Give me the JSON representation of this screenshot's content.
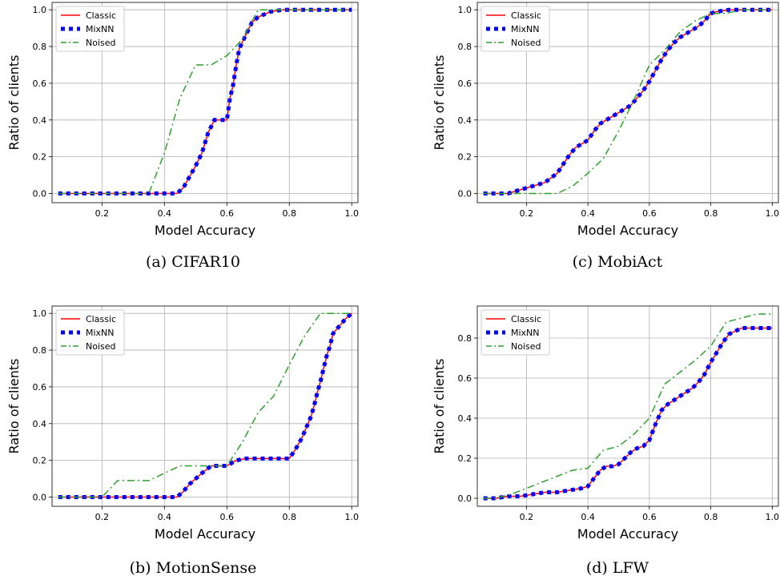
{
  "chart_data": [
    {
      "type": "line",
      "caption": "(a) CIFAR10",
      "xlabel": "Model Accuracy",
      "ylabel": "Ratio of clients",
      "xlim": [
        0.04,
        1.02
      ],
      "ylim": [
        -0.05,
        1.04
      ],
      "xticks": [
        "0.2",
        "0.4",
        "0.6",
        "0.8",
        "1.0"
      ],
      "yticks": [
        "0.0",
        "0.2",
        "0.4",
        "0.6",
        "0.8",
        "1.0"
      ],
      "legend": "top-left",
      "grid": true,
      "series": [
        {
          "name": "Classic",
          "color": "#ff0000",
          "style": "solid",
          "x": [
            0.06,
            0.1,
            0.14,
            0.18,
            0.22,
            0.26,
            0.3,
            0.34,
            0.38,
            0.42,
            0.44,
            0.46,
            0.48,
            0.5,
            0.52,
            0.54,
            0.56,
            0.58,
            0.6,
            0.61,
            0.62,
            0.63,
            0.64,
            0.66,
            0.68,
            0.7,
            0.74,
            0.78,
            0.82,
            0.86,
            0.9,
            0.94,
            0.98,
            1.0
          ],
          "y": [
            0,
            0,
            0,
            0,
            0,
            0,
            0,
            0,
            0,
            0,
            0,
            0.03,
            0.09,
            0.15,
            0.22,
            0.33,
            0.4,
            0.4,
            0.4,
            0.52,
            0.59,
            0.7,
            0.79,
            0.86,
            0.93,
            0.96,
            0.99,
            1.0,
            1.0,
            1.0,
            1.0,
            1.0,
            1.0,
            1.0
          ]
        },
        {
          "name": "MixNN",
          "color": "#0000ff",
          "style": "dotted",
          "x": [
            0.06,
            0.1,
            0.14,
            0.18,
            0.22,
            0.26,
            0.3,
            0.34,
            0.38,
            0.42,
            0.44,
            0.46,
            0.48,
            0.5,
            0.52,
            0.54,
            0.56,
            0.58,
            0.6,
            0.61,
            0.62,
            0.63,
            0.64,
            0.66,
            0.68,
            0.7,
            0.74,
            0.78,
            0.82,
            0.86,
            0.9,
            0.94,
            0.98,
            1.0
          ],
          "y": [
            0,
            0,
            0,
            0,
            0,
            0,
            0,
            0,
            0,
            0,
            0,
            0.03,
            0.09,
            0.15,
            0.22,
            0.33,
            0.4,
            0.4,
            0.4,
            0.52,
            0.59,
            0.7,
            0.79,
            0.86,
            0.93,
            0.96,
            0.99,
            1.0,
            1.0,
            1.0,
            1.0,
            1.0,
            1.0,
            1.0
          ]
        },
        {
          "name": "Noised",
          "color": "#2ca02c",
          "style": "dashdot",
          "x": [
            0.06,
            0.35,
            0.4,
            0.45,
            0.5,
            0.55,
            0.6,
            0.65,
            0.7,
            0.75,
            0.8,
            1.0
          ],
          "y": [
            0,
            0,
            0.22,
            0.52,
            0.7,
            0.7,
            0.75,
            0.84,
            1.0,
            1.0,
            1.0,
            1.0
          ]
        }
      ]
    },
    {
      "type": "line",
      "caption": "(c) MobiAct",
      "xlabel": "Model Accuracy",
      "ylabel": "Ratio of clients",
      "xlim": [
        0.04,
        1.02
      ],
      "ylim": [
        -0.05,
        1.04
      ],
      "xticks": [
        "0.2",
        "0.4",
        "0.6",
        "0.8",
        "1.0"
      ],
      "yticks": [
        "0.0",
        "0.2",
        "0.4",
        "0.6",
        "0.8",
        "1.0"
      ],
      "legend": "top-left",
      "grid": true,
      "series": [
        {
          "name": "Classic",
          "color": "#ff0000",
          "style": "solid",
          "x": [
            0.06,
            0.1,
            0.14,
            0.18,
            0.22,
            0.26,
            0.3,
            0.32,
            0.34,
            0.36,
            0.38,
            0.4,
            0.42,
            0.44,
            0.46,
            0.48,
            0.5,
            0.52,
            0.54,
            0.56,
            0.58,
            0.6,
            0.62,
            0.64,
            0.66,
            0.68,
            0.7,
            0.72,
            0.74,
            0.76,
            0.78,
            0.8,
            0.82,
            0.86,
            0.9,
            0.94,
            0.98,
            1.0
          ],
          "y": [
            0,
            0,
            0,
            0.02,
            0.04,
            0.06,
            0.11,
            0.16,
            0.21,
            0.25,
            0.27,
            0.29,
            0.34,
            0.38,
            0.4,
            0.42,
            0.44,
            0.46,
            0.48,
            0.52,
            0.56,
            0.61,
            0.67,
            0.73,
            0.78,
            0.82,
            0.85,
            0.87,
            0.89,
            0.91,
            0.94,
            0.98,
            0.99,
            1.0,
            1.0,
            1.0,
            1.0,
            1.0
          ]
        },
        {
          "name": "MixNN",
          "color": "#0000ff",
          "style": "dotted",
          "x": [
            0.06,
            0.1,
            0.14,
            0.18,
            0.22,
            0.26,
            0.3,
            0.32,
            0.34,
            0.36,
            0.38,
            0.4,
            0.42,
            0.44,
            0.46,
            0.48,
            0.5,
            0.52,
            0.54,
            0.56,
            0.58,
            0.6,
            0.62,
            0.64,
            0.66,
            0.68,
            0.7,
            0.72,
            0.74,
            0.76,
            0.78,
            0.8,
            0.82,
            0.86,
            0.9,
            0.94,
            0.98,
            1.0
          ],
          "y": [
            0,
            0,
            0,
            0.02,
            0.04,
            0.06,
            0.11,
            0.16,
            0.21,
            0.25,
            0.27,
            0.29,
            0.34,
            0.38,
            0.4,
            0.42,
            0.44,
            0.46,
            0.48,
            0.52,
            0.56,
            0.61,
            0.67,
            0.73,
            0.78,
            0.82,
            0.85,
            0.87,
            0.89,
            0.91,
            0.94,
            0.98,
            0.99,
            1.0,
            1.0,
            1.0,
            1.0,
            1.0
          ]
        },
        {
          "name": "Noised",
          "color": "#2ca02c",
          "style": "dashdot",
          "x": [
            0.06,
            0.3,
            0.35,
            0.4,
            0.45,
            0.5,
            0.55,
            0.6,
            0.65,
            0.7,
            0.75,
            0.8,
            0.85,
            0.9,
            1.0
          ],
          "y": [
            0,
            0,
            0.04,
            0.11,
            0.19,
            0.34,
            0.51,
            0.7,
            0.78,
            0.88,
            0.94,
            0.98,
            0.98,
            1.0,
            1.0
          ]
        }
      ]
    },
    {
      "type": "line",
      "caption": "(b) MotionSense",
      "xlabel": "Model Accuracy",
      "ylabel": "Ratio of clients",
      "xlim": [
        0.04,
        1.02
      ],
      "ylim": [
        -0.05,
        1.04
      ],
      "xticks": [
        "0.2",
        "0.4",
        "0.6",
        "0.8",
        "1.0"
      ],
      "yticks": [
        "0.0",
        "0.2",
        "0.4",
        "0.6",
        "0.8",
        "1.0"
      ],
      "legend": "top-left",
      "grid": true,
      "series": [
        {
          "name": "Classic",
          "color": "#ff0000",
          "style": "solid",
          "x": [
            0.06,
            0.1,
            0.14,
            0.18,
            0.22,
            0.26,
            0.3,
            0.34,
            0.38,
            0.42,
            0.44,
            0.46,
            0.48,
            0.5,
            0.52,
            0.55,
            0.58,
            0.6,
            0.63,
            0.66,
            0.7,
            0.74,
            0.78,
            0.8,
            0.82,
            0.84,
            0.86,
            0.87,
            0.88,
            0.89,
            0.9,
            0.91,
            0.92,
            0.93,
            0.94,
            0.96,
            0.98,
            1.0
          ],
          "y": [
            0,
            0,
            0,
            0,
            0,
            0,
            0,
            0,
            0,
            0,
            0,
            0.03,
            0.07,
            0.1,
            0.13,
            0.17,
            0.17,
            0.17,
            0.2,
            0.21,
            0.21,
            0.21,
            0.21,
            0.21,
            0.26,
            0.32,
            0.4,
            0.44,
            0.5,
            0.57,
            0.63,
            0.7,
            0.77,
            0.82,
            0.89,
            0.93,
            0.97,
            1.0
          ]
        },
        {
          "name": "MixNN",
          "color": "#0000ff",
          "style": "dotted",
          "x": [
            0.06,
            0.1,
            0.14,
            0.18,
            0.22,
            0.26,
            0.3,
            0.34,
            0.38,
            0.42,
            0.44,
            0.46,
            0.48,
            0.5,
            0.52,
            0.55,
            0.58,
            0.6,
            0.63,
            0.66,
            0.7,
            0.74,
            0.78,
            0.8,
            0.82,
            0.84,
            0.86,
            0.87,
            0.88,
            0.89,
            0.9,
            0.91,
            0.92,
            0.93,
            0.94,
            0.96,
            0.98,
            1.0
          ],
          "y": [
            0,
            0,
            0,
            0,
            0,
            0,
            0,
            0,
            0,
            0,
            0,
            0.03,
            0.07,
            0.1,
            0.13,
            0.17,
            0.17,
            0.17,
            0.2,
            0.21,
            0.21,
            0.21,
            0.21,
            0.21,
            0.26,
            0.32,
            0.4,
            0.44,
            0.5,
            0.57,
            0.63,
            0.7,
            0.77,
            0.82,
            0.89,
            0.93,
            0.97,
            1.0
          ]
        },
        {
          "name": "Noised",
          "color": "#2ca02c",
          "style": "dashdot",
          "x": [
            0.06,
            0.2,
            0.25,
            0.3,
            0.35,
            0.4,
            0.45,
            0.5,
            0.55,
            0.6,
            0.65,
            0.7,
            0.75,
            0.8,
            0.85,
            0.9,
            0.95,
            1.0
          ],
          "y": [
            0,
            0,
            0.09,
            0.09,
            0.09,
            0.13,
            0.17,
            0.17,
            0.17,
            0.17,
            0.3,
            0.46,
            0.55,
            0.72,
            0.88,
            1.0,
            1.0,
            1.0
          ]
        }
      ]
    },
    {
      "type": "line",
      "caption": "(d) LFW",
      "xlabel": "Model Accuracy",
      "ylabel": "Ratio of clients",
      "xlim": [
        0.04,
        1.02
      ],
      "ylim": [
        -0.04,
        0.96
      ],
      "xticks": [
        "0.2",
        "0.4",
        "0.6",
        "0.8",
        "1.0"
      ],
      "yticks": [
        "0.0",
        "0.2",
        "0.4",
        "0.6",
        "0.8"
      ],
      "legend": "top-left",
      "grid": true,
      "series": [
        {
          "name": "Classic",
          "color": "#ff0000",
          "style": "solid",
          "x": [
            0.06,
            0.1,
            0.14,
            0.18,
            0.22,
            0.26,
            0.3,
            0.34,
            0.38,
            0.4,
            0.42,
            0.44,
            0.46,
            0.48,
            0.5,
            0.52,
            0.54,
            0.56,
            0.58,
            0.6,
            0.62,
            0.64,
            0.66,
            0.68,
            0.7,
            0.72,
            0.74,
            0.76,
            0.78,
            0.8,
            0.82,
            0.84,
            0.86,
            0.9,
            0.94,
            0.98,
            1.0
          ],
          "y": [
            0,
            0,
            0.01,
            0.01,
            0.02,
            0.03,
            0.03,
            0.04,
            0.05,
            0.06,
            0.1,
            0.14,
            0.16,
            0.16,
            0.17,
            0.2,
            0.23,
            0.25,
            0.26,
            0.29,
            0.37,
            0.44,
            0.47,
            0.49,
            0.51,
            0.53,
            0.55,
            0.58,
            0.62,
            0.68,
            0.73,
            0.78,
            0.82,
            0.85,
            0.85,
            0.85,
            0.85
          ]
        },
        {
          "name": "MixNN",
          "color": "#0000ff",
          "style": "dotted",
          "x": [
            0.06,
            0.1,
            0.14,
            0.18,
            0.22,
            0.26,
            0.3,
            0.34,
            0.38,
            0.4,
            0.42,
            0.44,
            0.46,
            0.48,
            0.5,
            0.52,
            0.54,
            0.56,
            0.58,
            0.6,
            0.62,
            0.64,
            0.66,
            0.68,
            0.7,
            0.72,
            0.74,
            0.76,
            0.78,
            0.8,
            0.82,
            0.84,
            0.86,
            0.9,
            0.94,
            0.98,
            1.0
          ],
          "y": [
            0,
            0,
            0.01,
            0.01,
            0.02,
            0.03,
            0.03,
            0.04,
            0.05,
            0.06,
            0.1,
            0.14,
            0.16,
            0.16,
            0.17,
            0.2,
            0.23,
            0.25,
            0.26,
            0.29,
            0.37,
            0.44,
            0.47,
            0.49,
            0.51,
            0.53,
            0.55,
            0.58,
            0.62,
            0.68,
            0.73,
            0.78,
            0.82,
            0.85,
            0.85,
            0.85,
            0.85
          ]
        },
        {
          "name": "Noised",
          "color": "#2ca02c",
          "style": "dashdot",
          "x": [
            0.06,
            0.1,
            0.15,
            0.2,
            0.25,
            0.3,
            0.35,
            0.4,
            0.45,
            0.5,
            0.55,
            0.6,
            0.65,
            0.7,
            0.75,
            0.8,
            0.85,
            0.9,
            0.95,
            1.0
          ],
          "y": [
            0,
            0,
            0.02,
            0.05,
            0.08,
            0.11,
            0.14,
            0.15,
            0.24,
            0.26,
            0.32,
            0.4,
            0.57,
            0.63,
            0.69,
            0.76,
            0.88,
            0.9,
            0.92,
            0.92
          ]
        }
      ]
    }
  ]
}
